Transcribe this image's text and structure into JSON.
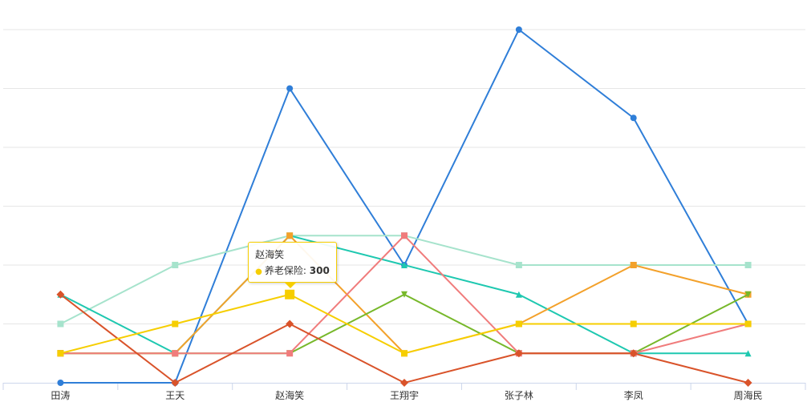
{
  "chart_data": {
    "type": "line",
    "categories": [
      "田涛",
      "王天",
      "赵海笑",
      "王翔宇",
      "张子林",
      "李凤",
      "周海民"
    ],
    "ylim": [
      0,
      1200
    ],
    "y_tick_step": 200,
    "y_tick_labels_visible": false,
    "grid": true,
    "legend": "none",
    "series": [
      {
        "color": "#2f7ed8",
        "marker": "circle",
        "values": [
          0,
          0,
          1000,
          400,
          1200,
          900,
          200
        ]
      },
      {
        "color": "#a6e3cc",
        "marker": "square",
        "values": [
          200,
          400,
          500,
          500,
          400,
          400,
          400
        ]
      },
      {
        "color": "#1ec8b0",
        "marker": "triangle",
        "values": [
          300,
          100,
          500,
          400,
          300,
          100,
          100
        ]
      },
      {
        "color": "#f3a12b",
        "marker": "square",
        "values": [
          100,
          100,
          500,
          100,
          200,
          400,
          300
        ]
      },
      {
        "color": "#77b82a",
        "marker": "triangle-down",
        "values": [
          100,
          100,
          100,
          300,
          100,
          100,
          300
        ]
      },
      {
        "color": "#f07c7c",
        "marker": "square",
        "values": [
          100,
          100,
          100,
          500,
          100,
          100,
          200
        ]
      },
      {
        "color": "#d9532a",
        "marker": "diamond",
        "values": [
          300,
          0,
          200,
          0,
          100,
          100,
          0
        ]
      },
      {
        "color": "#f6ce00",
        "marker": "square",
        "values": [
          100,
          200,
          300,
          100,
          200,
          200,
          200
        ]
      }
    ]
  },
  "tooltip": {
    "title": "赵海笑",
    "series_name": "养老保险",
    "value": "300",
    "category_index": 2,
    "series_index": 7
  }
}
